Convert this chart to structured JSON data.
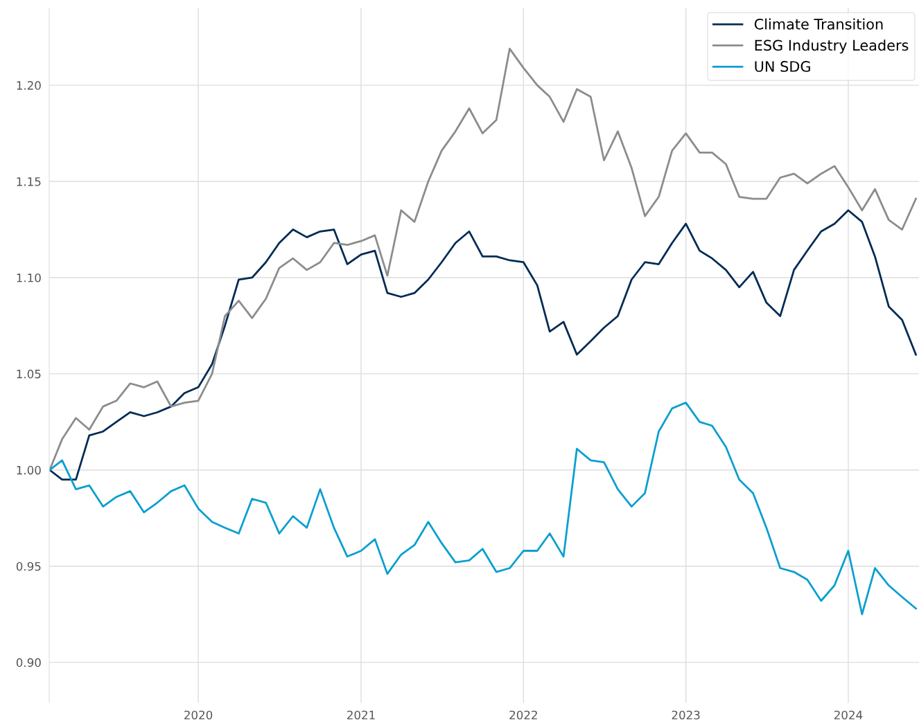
{
  "chart_data": {
    "type": "line",
    "x": [
      "2019-02-01",
      "2019-03-01",
      "2019-04-01",
      "2019-05-01",
      "2019-06-01",
      "2019-07-01",
      "2019-08-01",
      "2019-09-01",
      "2019-10-01",
      "2019-11-01",
      "2019-12-01",
      "2020-01-01",
      "2020-02-01",
      "2020-03-01",
      "2020-04-01",
      "2020-05-01",
      "2020-06-01",
      "2020-07-01",
      "2020-08-01",
      "2020-09-01",
      "2020-10-01",
      "2020-11-01",
      "2020-12-01",
      "2021-01-01",
      "2021-02-01",
      "2021-03-01",
      "2021-04-01",
      "2021-05-01",
      "2021-06-01",
      "2021-07-01",
      "2021-08-01",
      "2021-09-01",
      "2021-10-01",
      "2021-11-01",
      "2021-12-01",
      "2022-01-01",
      "2022-02-01",
      "2022-03-01",
      "2022-04-01",
      "2022-05-01",
      "2022-06-01",
      "2022-07-01",
      "2022-08-01",
      "2022-09-01",
      "2022-10-01",
      "2022-11-01",
      "2022-12-01",
      "2023-01-01",
      "2023-02-01",
      "2023-03-01",
      "2023-04-01",
      "2023-05-01",
      "2023-06-01",
      "2023-07-01",
      "2023-08-01",
      "2023-09-01",
      "2023-10-01",
      "2023-11-01",
      "2023-12-01",
      "2024-01-01",
      "2024-02-01",
      "2024-03-01",
      "2024-04-01",
      "2024-05-01",
      "2024-06-01"
    ],
    "series": [
      {
        "name": "Climate Transition",
        "color": "#002b54",
        "values": [
          1.0,
          0.995,
          0.995,
          1.018,
          1.02,
          1.025,
          1.03,
          1.028,
          1.03,
          1.033,
          1.04,
          1.043,
          1.055,
          1.075,
          1.099,
          1.1,
          1.108,
          1.118,
          1.125,
          1.121,
          1.124,
          1.125,
          1.107,
          1.112,
          1.114,
          1.092,
          1.09,
          1.092,
          1.099,
          1.108,
          1.118,
          1.124,
          1.111,
          1.111,
          1.109,
          1.108,
          1.096,
          1.072,
          1.077,
          1.06,
          1.067,
          1.074,
          1.08,
          1.099,
          1.108,
          1.107,
          1.118,
          1.128,
          1.114,
          1.11,
          1.104,
          1.095,
          1.103,
          1.087,
          1.08,
          1.104,
          1.114,
          1.124,
          1.128,
          1.135,
          1.129,
          1.111,
          1.085,
          1.078,
          1.06
        ]
      },
      {
        "name": "ESG Industry Leaders",
        "color": "#8c8c8c",
        "values": [
          1.0,
          1.016,
          1.027,
          1.021,
          1.033,
          1.036,
          1.045,
          1.043,
          1.046,
          1.033,
          1.035,
          1.036,
          1.05,
          1.08,
          1.088,
          1.079,
          1.089,
          1.105,
          1.11,
          1.104,
          1.108,
          1.118,
          1.117,
          1.119,
          1.122,
          1.101,
          1.135,
          1.129,
          1.15,
          1.166,
          1.176,
          1.188,
          1.175,
          1.182,
          1.219,
          1.209,
          1.2,
          1.194,
          1.181,
          1.198,
          1.194,
          1.161,
          1.176,
          1.157,
          1.132,
          1.142,
          1.166,
          1.175,
          1.165,
          1.165,
          1.159,
          1.142,
          1.141,
          1.141,
          1.152,
          1.154,
          1.149,
          1.154,
          1.158,
          1.147,
          1.135,
          1.146,
          1.13,
          1.125,
          1.141
        ]
      },
      {
        "name": "UN SDG",
        "color": "#0a9fd0",
        "values": [
          1.0,
          1.005,
          0.99,
          0.992,
          0.981,
          0.986,
          0.989,
          0.978,
          0.983,
          0.989,
          0.992,
          0.98,
          0.973,
          0.97,
          0.967,
          0.985,
          0.983,
          0.967,
          0.976,
          0.97,
          0.99,
          0.97,
          0.955,
          0.958,
          0.964,
          0.946,
          0.956,
          0.961,
          0.973,
          0.962,
          0.952,
          0.953,
          0.959,
          0.947,
          0.949,
          0.958,
          0.958,
          0.967,
          0.955,
          1.011,
          1.005,
          1.004,
          0.99,
          0.981,
          0.988,
          1.02,
          1.032,
          1.035,
          1.025,
          1.023,
          1.012,
          0.995,
          0.988,
          0.97,
          0.949,
          0.947,
          0.943,
          0.932,
          0.94,
          0.958,
          0.925,
          0.949,
          0.94,
          0.934,
          0.928
        ]
      }
    ],
    "xlim": [
      "2019-01-31",
      "2024-06-08"
    ],
    "xticks": [
      {
        "value": "2020-01-01",
        "label": "2020"
      },
      {
        "value": "2021-01-01",
        "label": "2021"
      },
      {
        "value": "2022-01-01",
        "label": "2022"
      },
      {
        "value": "2023-01-01",
        "label": "2023"
      },
      {
        "value": "2024-01-01",
        "label": "2024"
      }
    ],
    "ylim": [
      0.879,
      1.24
    ],
    "yticks": [
      {
        "value": 0.9,
        "label": "0.90"
      },
      {
        "value": 0.95,
        "label": "0.95"
      },
      {
        "value": 1.0,
        "label": "1.00"
      },
      {
        "value": 1.05,
        "label": "1.05"
      },
      {
        "value": 1.1,
        "label": "1.10"
      },
      {
        "value": 1.15,
        "label": "1.15"
      },
      {
        "value": 1.2,
        "label": "1.20"
      }
    ],
    "grid": true,
    "legend": "top right",
    "line_style": "solid"
  }
}
